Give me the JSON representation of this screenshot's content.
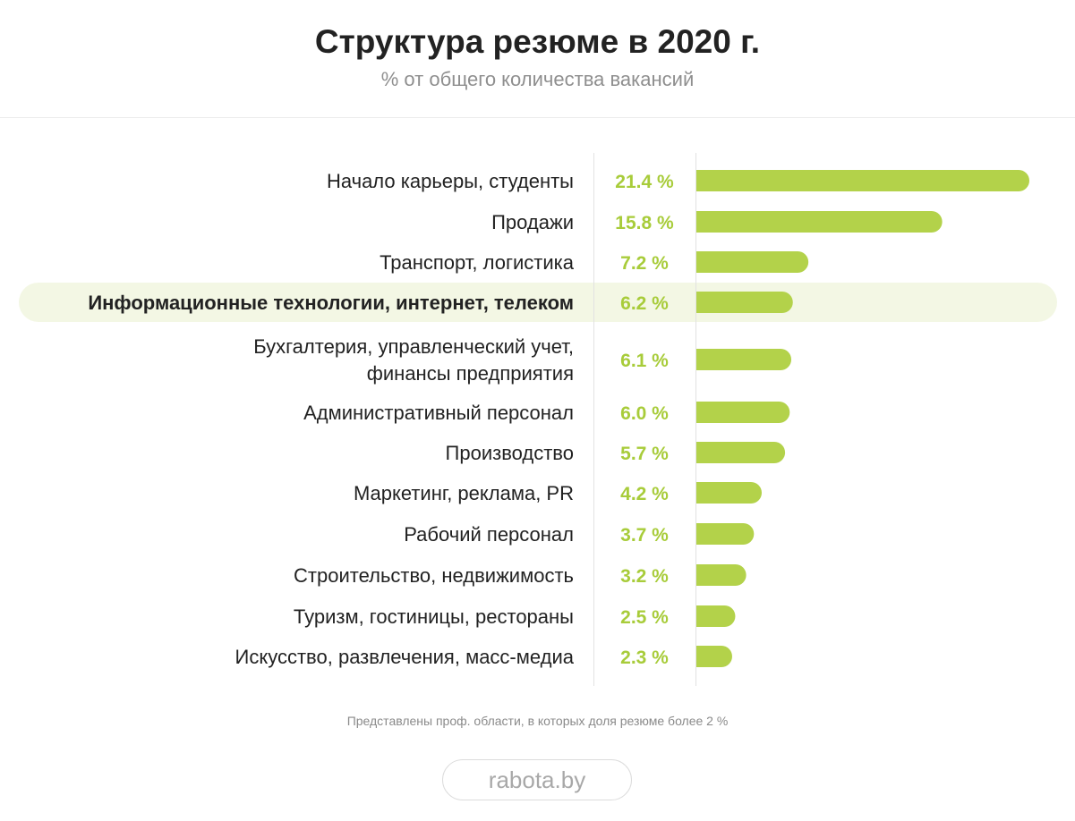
{
  "header": {
    "title": "Структура резюме в 2020 г.",
    "subtitle": "% от общего количества вакансий"
  },
  "footnote": "Представлены проф. области, в которых доля резюме более 2 %",
  "brand": "rabota.by",
  "colors": {
    "bar": "#b3d24a",
    "value_text": "#a8cc3a",
    "highlight_bg": "#f3f7e4",
    "label_text": "#222222",
    "axis_line": "#e2e2e2"
  },
  "chart_data": {
    "type": "bar",
    "orientation": "horizontal",
    "title": "Структура резюме в 2020 г.",
    "subtitle": "% от общего количества вакансий",
    "unit": "%",
    "xlim": [
      0,
      21.4
    ],
    "categories": [
      [
        "Начало карьеры, студенты"
      ],
      [
        "Продажи"
      ],
      [
        "Транспорт, логистика"
      ],
      [
        "Информационные технологии, интернет, телеком"
      ],
      [
        "Бухгалтерия, управленческий учет,",
        "финансы предприятия"
      ],
      [
        "Административный персонал"
      ],
      [
        "Производство"
      ],
      [
        "Маркетинг, реклама, PR"
      ],
      [
        "Рабочий персонал"
      ],
      [
        "Строительство, недвижимость"
      ],
      [
        "Туризм, гостиницы, рестораны"
      ],
      [
        "Искусство, развлечения, масс-медиа"
      ]
    ],
    "values": [
      21.4,
      15.8,
      7.2,
      6.2,
      6.1,
      6.0,
      5.7,
      4.2,
      3.7,
      3.2,
      2.5,
      2.3
    ],
    "value_labels": [
      "21.4 %",
      "15.8 %",
      "7.2 %",
      "6.2 %",
      "6.1 %",
      "6.0 %",
      "5.7 %",
      "4.2 %",
      "3.7 %",
      "3.2 %",
      "2.5 %",
      "2.3 %"
    ],
    "highlighted_index": 3
  }
}
